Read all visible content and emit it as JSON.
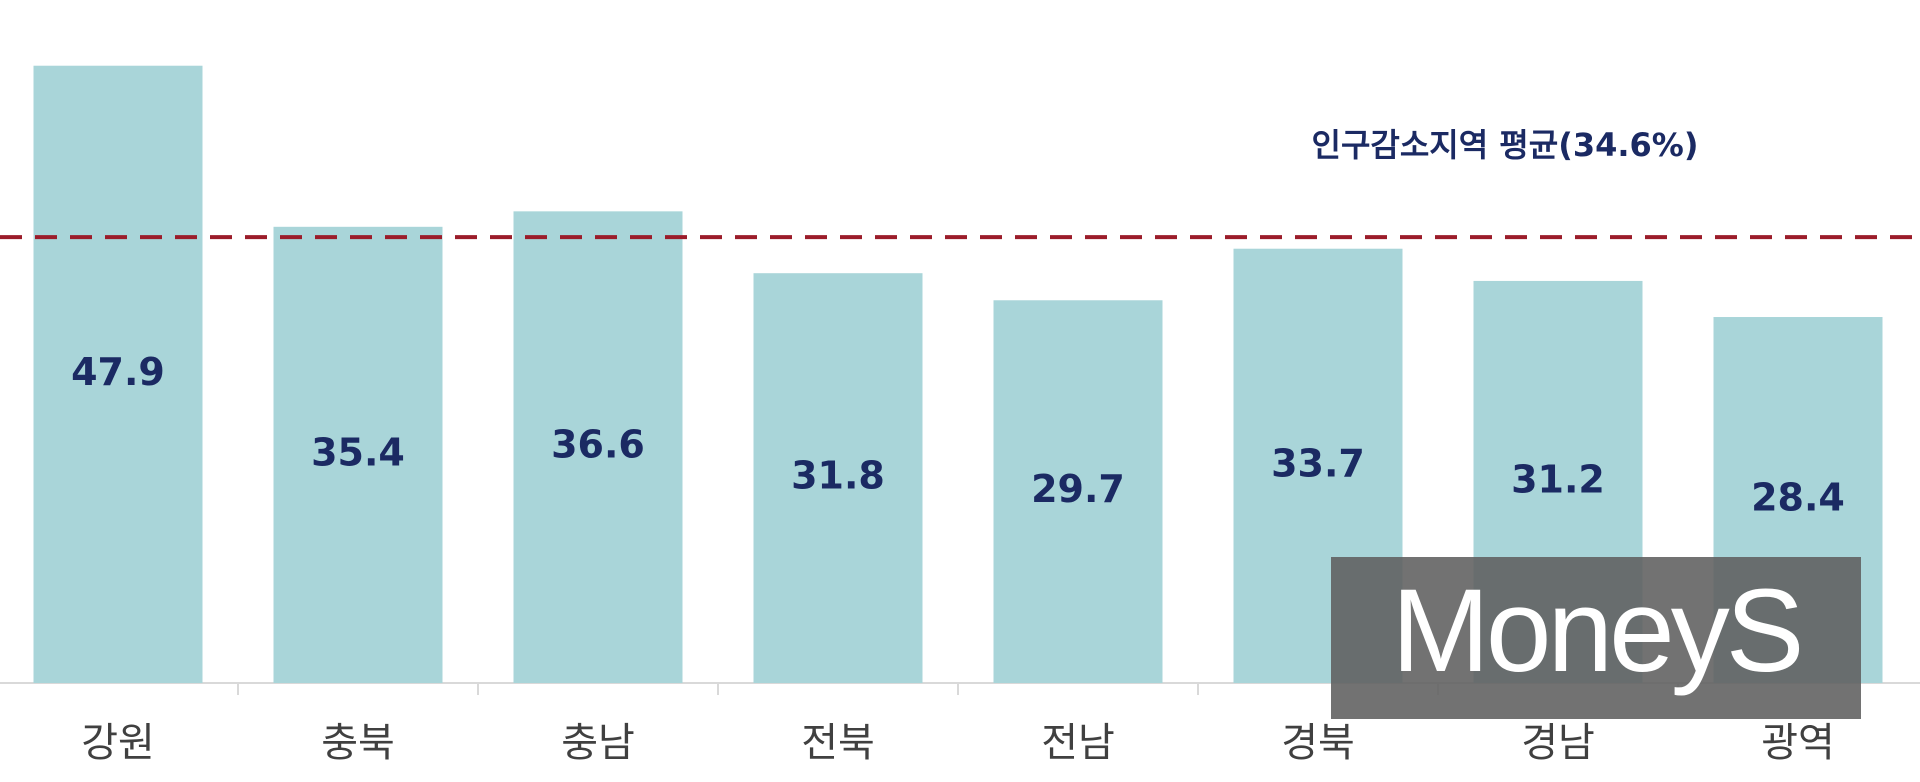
{
  "chart_data": {
    "type": "bar",
    "categories": [
      "강원",
      "충북",
      "충남",
      "전북",
      "전남",
      "경북",
      "경남",
      "광역"
    ],
    "values": [
      47.9,
      35.4,
      36.6,
      31.8,
      29.7,
      33.7,
      31.2,
      28.4
    ],
    "color": "#a9d5d9",
    "ylim": [
      0,
      53
    ],
    "reference_line": {
      "value": 34.6,
      "label": "인구감소지역 평균(34.6%)",
      "color": "#9b1c2a"
    },
    "watermark": "MoneyS"
  }
}
